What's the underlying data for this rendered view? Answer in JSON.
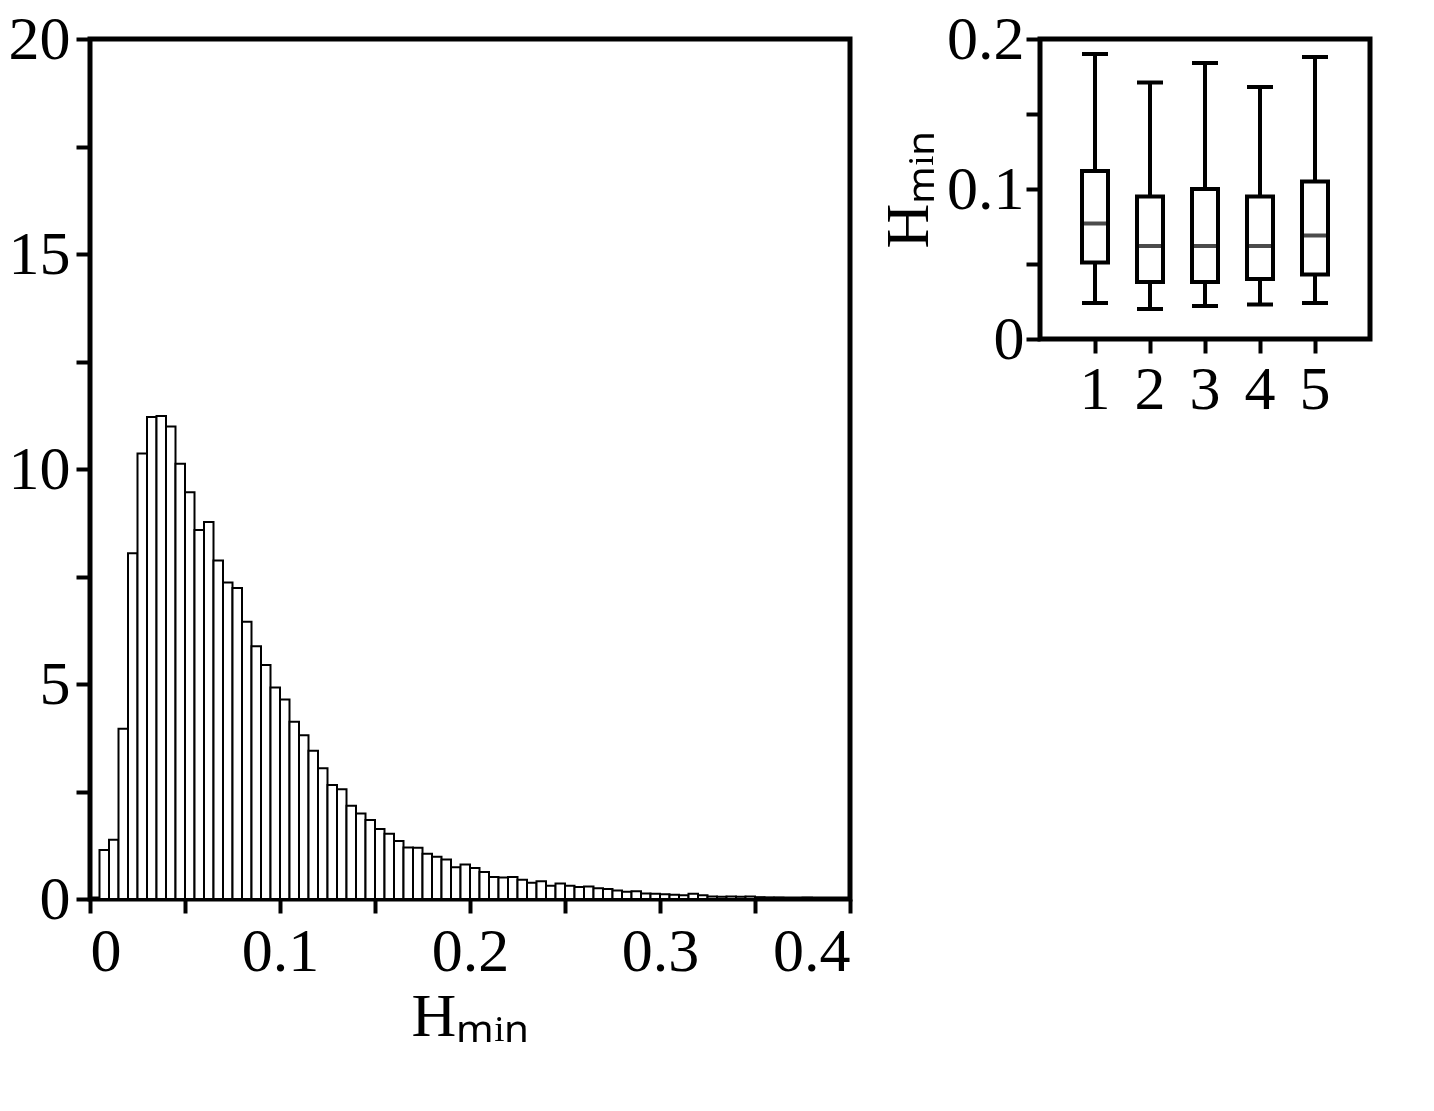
{
  "chart_data": [
    {
      "type": "histogram",
      "xlabel": "Hₘᵢₙ",
      "color": "#ffffff",
      "bins": [
        0.005,
        0.01,
        0.015,
        0.02,
        0.025,
        0.03,
        0.035,
        0.04,
        0.045,
        0.05,
        0.055,
        0.06,
        0.065,
        0.07,
        0.075,
        0.08,
        0.085,
        0.09,
        0.095,
        0.1,
        0.105,
        0.11,
        0.115,
        0.12,
        0.125,
        0.13,
        0.135,
        0.14,
        0.145,
        0.15,
        0.155,
        0.16,
        0.165,
        0.17,
        0.175,
        0.18,
        0.185,
        0.19,
        0.195,
        0.2,
        0.205,
        0.21,
        0.215,
        0.22,
        0.225,
        0.23,
        0.235,
        0.24,
        0.245,
        0.25,
        0.255,
        0.26,
        0.265,
        0.27,
        0.275,
        0.28,
        0.285,
        0.29,
        0.295,
        0.3,
        0.305,
        0.31,
        0.315,
        0.32,
        0.325,
        0.33,
        0.335,
        0.34,
        0.345,
        0.35,
        0.355,
        0.36,
        0.365,
        0.37,
        0.375,
        0.38,
        0.385,
        0.39,
        0.395,
        0.4
      ],
      "values": [
        1.14,
        1.38,
        3.96,
        8.04,
        10.36,
        11.21,
        11.23,
        10.99,
        10.12,
        9.46,
        8.58,
        8.77,
        7.87,
        7.36,
        7.23,
        6.45,
        5.88,
        5.44,
        4.92,
        4.64,
        4.12,
        3.81,
        3.45,
        3.04,
        2.65,
        2.55,
        2.17,
        1.99,
        1.84,
        1.63,
        1.52,
        1.35,
        1.2,
        1.19,
        1.05,
        0.98,
        0.92,
        0.74,
        0.8,
        0.72,
        0.63,
        0.51,
        0.5,
        0.51,
        0.45,
        0.38,
        0.41,
        0.31,
        0.36,
        0.31,
        0.28,
        0.29,
        0.25,
        0.23,
        0.2,
        0.17,
        0.18,
        0.13,
        0.12,
        0.11,
        0.1,
        0.09,
        0.12,
        0.09,
        0.06,
        0.05,
        0.06,
        0.05,
        0.06,
        0.04,
        0.03,
        0.03,
        0.02,
        0.02,
        0.03,
        0.02,
        0.02,
        0.01,
        0.01
      ],
      "xlim": [
        0,
        0.4
      ],
      "xticks": [
        0,
        {
          "value": 0.05,
          "label": null
        },
        0.1,
        {
          "value": 0.15,
          "label": null
        },
        0.2,
        {
          "value": 0.25,
          "label": null
        },
        0.3,
        {
          "value": 0.35,
          "label": null
        },
        0.4
      ],
      "ylim": [
        0,
        20
      ],
      "yticks": [
        0,
        {
          "value": 2.5,
          "label": null
        },
        5,
        {
          "value": 7.5,
          "label": null
        },
        10,
        {
          "value": 12.5,
          "label": null
        },
        15,
        {
          "value": 17.5,
          "label": null
        },
        20
      ]
    },
    {
      "type": "box",
      "ylabel": "Hₘᵢₙ",
      "categories": [
        "1",
        "2",
        "3",
        "4",
        "5"
      ],
      "ylim": [
        0,
        0.2
      ],
      "yticks": [
        0,
        {
          "value": 0.05,
          "label": null
        },
        0.1,
        {
          "value": 0.15,
          "label": null
        },
        0.2
      ],
      "boxes": [
        {
          "low": 0.024,
          "q1": 0.051,
          "median": 0.077,
          "q3": 0.112,
          "high": 0.19
        },
        {
          "low": 0.02,
          "q1": 0.038,
          "median": 0.062,
          "q3": 0.095,
          "high": 0.171
        },
        {
          "low": 0.022,
          "q1": 0.038,
          "median": 0.062,
          "q3": 0.1,
          "high": 0.184
        },
        {
          "low": 0.023,
          "q1": 0.04,
          "median": 0.062,
          "q3": 0.095,
          "high": 0.168
        },
        {
          "low": 0.024,
          "q1": 0.043,
          "median": 0.069,
          "q3": 0.105,
          "high": 0.188
        }
      ]
    }
  ]
}
